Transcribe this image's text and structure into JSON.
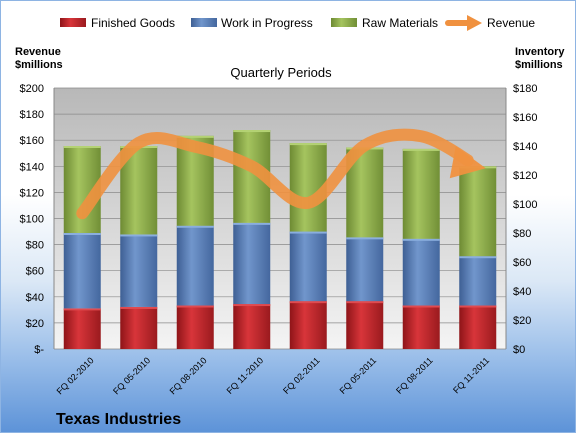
{
  "chart_data": {
    "type": "bar",
    "stacked": true,
    "title": "Quarterly Periods",
    "company": "Texas Industries",
    "categories": [
      "FQ 02-2010",
      "FQ 05-2010",
      "FQ 08-2010",
      "FQ 11-2010",
      "FQ 02-2011",
      "FQ 05-2011",
      "FQ 08-2011",
      "FQ 11-2011"
    ],
    "series": [
      {
        "name": "Finished Goods",
        "color": "#c0262b",
        "axis": "right",
        "values": [
          28,
          29,
          30,
          31,
          33,
          33,
          30,
          30
        ]
      },
      {
        "name": "Work in Progress",
        "color": "#5a7fb8",
        "axis": "right",
        "values": [
          52,
          50,
          55,
          56,
          48,
          44,
          46,
          34
        ]
      },
      {
        "name": "Raw Materials",
        "color": "#8fb04c",
        "axis": "right",
        "values": [
          60,
          61,
          62,
          64,
          61,
          62,
          62,
          62
        ]
      }
    ],
    "line": {
      "name": "Revenue",
      "color": "#f0913f",
      "axis": "left",
      "values": [
        104,
        158,
        155,
        140,
        112,
        156,
        163,
        140
      ]
    },
    "left_axis": {
      "label_line1": "Revenue",
      "label_line2": "$millions",
      "min": 0,
      "max": 200,
      "step": 20,
      "ticks": [
        "$-",
        "$20",
        "$40",
        "$60",
        "$80",
        "$100",
        "$120",
        "$140",
        "$160",
        "$180",
        "$200"
      ]
    },
    "right_axis": {
      "label_line1": "Inventory",
      "label_line2": "$millions",
      "min": 0,
      "max": 180,
      "step": 20,
      "ticks": [
        "$0",
        "$20",
        "$40",
        "$60",
        "$80",
        "$100",
        "$120",
        "$140",
        "$160",
        "$180"
      ]
    },
    "grid": true,
    "legend_position": "top"
  }
}
